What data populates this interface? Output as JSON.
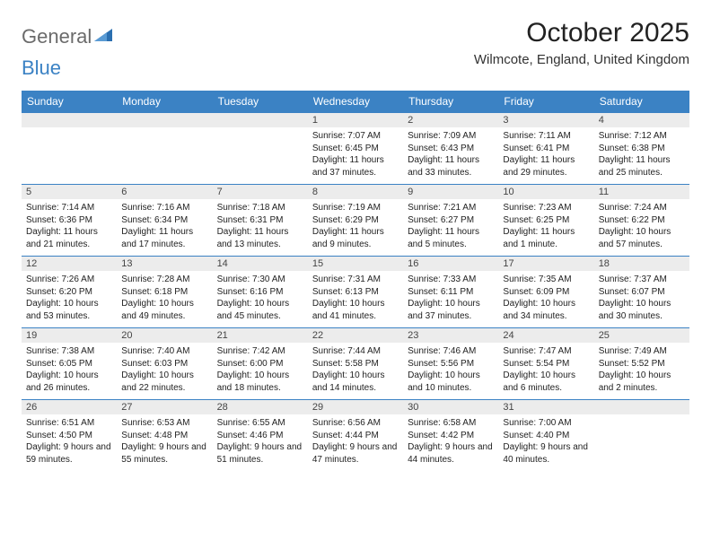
{
  "logo": {
    "text_gray": "General",
    "text_blue": "Blue"
  },
  "header": {
    "month_title": "October 2025",
    "location": "Wilmcote, England, United Kingdom"
  },
  "colors": {
    "header_bg": "#3b82c4",
    "header_text": "#ffffff",
    "daynum_bg": "#ececec",
    "border": "#3b82c4",
    "logo_gray": "#6b6b6b",
    "logo_blue": "#3b82c4"
  },
  "weekdays": [
    "Sunday",
    "Monday",
    "Tuesday",
    "Wednesday",
    "Thursday",
    "Friday",
    "Saturday"
  ],
  "weeks": [
    [
      null,
      null,
      null,
      {
        "day": "1",
        "sunrise": "Sunrise: 7:07 AM",
        "sunset": "Sunset: 6:45 PM",
        "daylight": "Daylight: 11 hours and 37 minutes."
      },
      {
        "day": "2",
        "sunrise": "Sunrise: 7:09 AM",
        "sunset": "Sunset: 6:43 PM",
        "daylight": "Daylight: 11 hours and 33 minutes."
      },
      {
        "day": "3",
        "sunrise": "Sunrise: 7:11 AM",
        "sunset": "Sunset: 6:41 PM",
        "daylight": "Daylight: 11 hours and 29 minutes."
      },
      {
        "day": "4",
        "sunrise": "Sunrise: 7:12 AM",
        "sunset": "Sunset: 6:38 PM",
        "daylight": "Daylight: 11 hours and 25 minutes."
      }
    ],
    [
      {
        "day": "5",
        "sunrise": "Sunrise: 7:14 AM",
        "sunset": "Sunset: 6:36 PM",
        "daylight": "Daylight: 11 hours and 21 minutes."
      },
      {
        "day": "6",
        "sunrise": "Sunrise: 7:16 AM",
        "sunset": "Sunset: 6:34 PM",
        "daylight": "Daylight: 11 hours and 17 minutes."
      },
      {
        "day": "7",
        "sunrise": "Sunrise: 7:18 AM",
        "sunset": "Sunset: 6:31 PM",
        "daylight": "Daylight: 11 hours and 13 minutes."
      },
      {
        "day": "8",
        "sunrise": "Sunrise: 7:19 AM",
        "sunset": "Sunset: 6:29 PM",
        "daylight": "Daylight: 11 hours and 9 minutes."
      },
      {
        "day": "9",
        "sunrise": "Sunrise: 7:21 AM",
        "sunset": "Sunset: 6:27 PM",
        "daylight": "Daylight: 11 hours and 5 minutes."
      },
      {
        "day": "10",
        "sunrise": "Sunrise: 7:23 AM",
        "sunset": "Sunset: 6:25 PM",
        "daylight": "Daylight: 11 hours and 1 minute."
      },
      {
        "day": "11",
        "sunrise": "Sunrise: 7:24 AM",
        "sunset": "Sunset: 6:22 PM",
        "daylight": "Daylight: 10 hours and 57 minutes."
      }
    ],
    [
      {
        "day": "12",
        "sunrise": "Sunrise: 7:26 AM",
        "sunset": "Sunset: 6:20 PM",
        "daylight": "Daylight: 10 hours and 53 minutes."
      },
      {
        "day": "13",
        "sunrise": "Sunrise: 7:28 AM",
        "sunset": "Sunset: 6:18 PM",
        "daylight": "Daylight: 10 hours and 49 minutes."
      },
      {
        "day": "14",
        "sunrise": "Sunrise: 7:30 AM",
        "sunset": "Sunset: 6:16 PM",
        "daylight": "Daylight: 10 hours and 45 minutes."
      },
      {
        "day": "15",
        "sunrise": "Sunrise: 7:31 AM",
        "sunset": "Sunset: 6:13 PM",
        "daylight": "Daylight: 10 hours and 41 minutes."
      },
      {
        "day": "16",
        "sunrise": "Sunrise: 7:33 AM",
        "sunset": "Sunset: 6:11 PM",
        "daylight": "Daylight: 10 hours and 37 minutes."
      },
      {
        "day": "17",
        "sunrise": "Sunrise: 7:35 AM",
        "sunset": "Sunset: 6:09 PM",
        "daylight": "Daylight: 10 hours and 34 minutes."
      },
      {
        "day": "18",
        "sunrise": "Sunrise: 7:37 AM",
        "sunset": "Sunset: 6:07 PM",
        "daylight": "Daylight: 10 hours and 30 minutes."
      }
    ],
    [
      {
        "day": "19",
        "sunrise": "Sunrise: 7:38 AM",
        "sunset": "Sunset: 6:05 PM",
        "daylight": "Daylight: 10 hours and 26 minutes."
      },
      {
        "day": "20",
        "sunrise": "Sunrise: 7:40 AM",
        "sunset": "Sunset: 6:03 PM",
        "daylight": "Daylight: 10 hours and 22 minutes."
      },
      {
        "day": "21",
        "sunrise": "Sunrise: 7:42 AM",
        "sunset": "Sunset: 6:00 PM",
        "daylight": "Daylight: 10 hours and 18 minutes."
      },
      {
        "day": "22",
        "sunrise": "Sunrise: 7:44 AM",
        "sunset": "Sunset: 5:58 PM",
        "daylight": "Daylight: 10 hours and 14 minutes."
      },
      {
        "day": "23",
        "sunrise": "Sunrise: 7:46 AM",
        "sunset": "Sunset: 5:56 PM",
        "daylight": "Daylight: 10 hours and 10 minutes."
      },
      {
        "day": "24",
        "sunrise": "Sunrise: 7:47 AM",
        "sunset": "Sunset: 5:54 PM",
        "daylight": "Daylight: 10 hours and 6 minutes."
      },
      {
        "day": "25",
        "sunrise": "Sunrise: 7:49 AM",
        "sunset": "Sunset: 5:52 PM",
        "daylight": "Daylight: 10 hours and 2 minutes."
      }
    ],
    [
      {
        "day": "26",
        "sunrise": "Sunrise: 6:51 AM",
        "sunset": "Sunset: 4:50 PM",
        "daylight": "Daylight: 9 hours and 59 minutes."
      },
      {
        "day": "27",
        "sunrise": "Sunrise: 6:53 AM",
        "sunset": "Sunset: 4:48 PM",
        "daylight": "Daylight: 9 hours and 55 minutes."
      },
      {
        "day": "28",
        "sunrise": "Sunrise: 6:55 AM",
        "sunset": "Sunset: 4:46 PM",
        "daylight": "Daylight: 9 hours and 51 minutes."
      },
      {
        "day": "29",
        "sunrise": "Sunrise: 6:56 AM",
        "sunset": "Sunset: 4:44 PM",
        "daylight": "Daylight: 9 hours and 47 minutes."
      },
      {
        "day": "30",
        "sunrise": "Sunrise: 6:58 AM",
        "sunset": "Sunset: 4:42 PM",
        "daylight": "Daylight: 9 hours and 44 minutes."
      },
      {
        "day": "31",
        "sunrise": "Sunrise: 7:00 AM",
        "sunset": "Sunset: 4:40 PM",
        "daylight": "Daylight: 9 hours and 40 minutes."
      },
      null
    ]
  ]
}
